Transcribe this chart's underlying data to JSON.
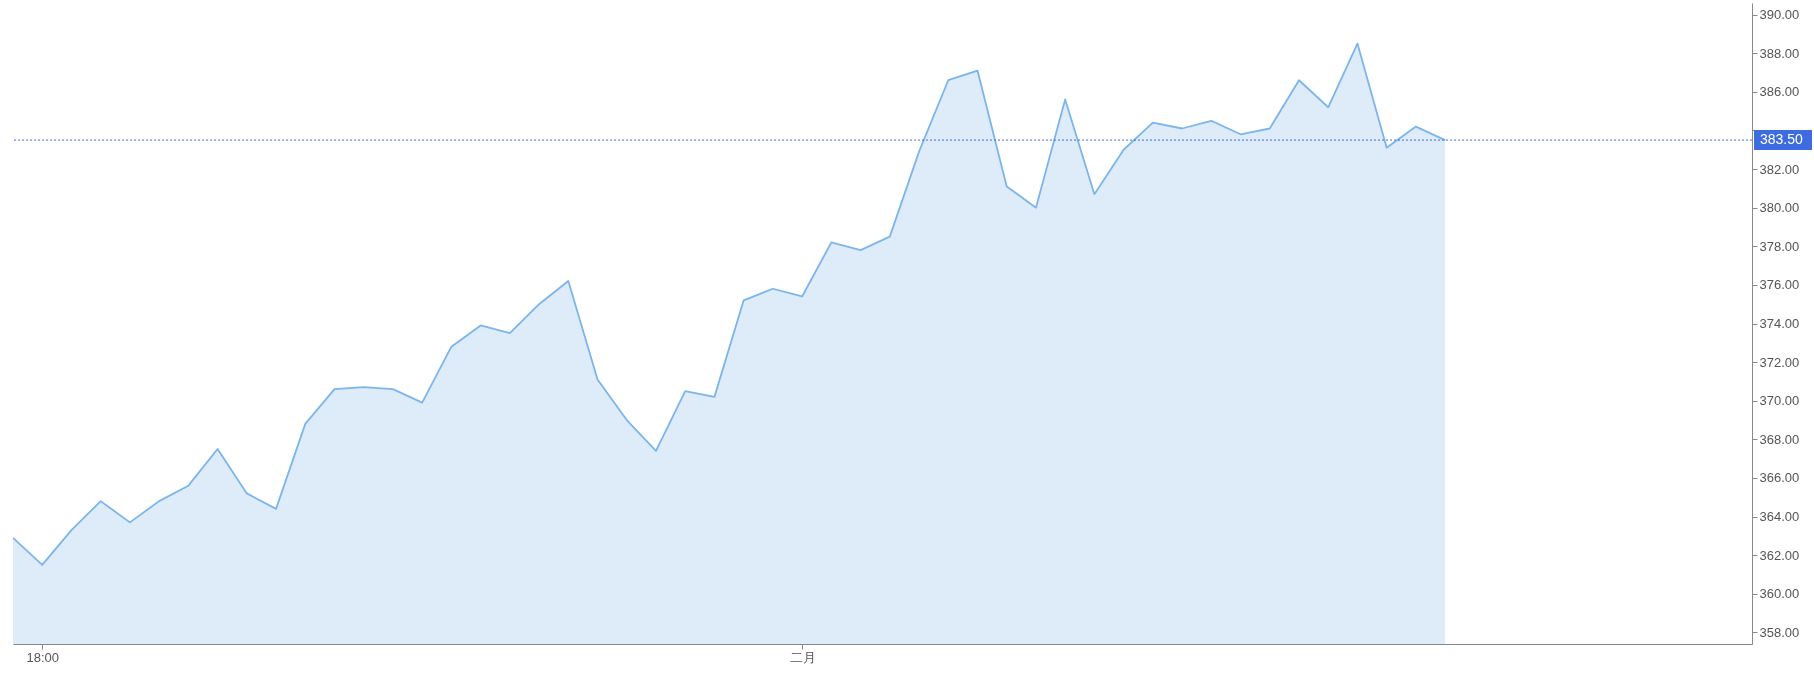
{
  "chart_data": {
    "type": "area",
    "categories": [
      null,
      "18:00",
      null,
      null,
      null,
      null,
      null,
      null,
      null,
      null,
      null,
      null,
      null,
      null,
      null,
      null,
      null,
      null,
      null,
      null,
      null,
      null,
      null,
      null,
      null,
      null,
      null,
      "二月",
      null,
      null,
      null,
      null,
      null,
      null,
      null,
      null,
      null,
      null,
      null,
      null,
      null,
      null,
      null,
      null,
      null,
      null,
      null,
      null,
      null,
      null,
      null,
      null,
      null,
      null,
      null,
      null,
      null,
      null,
      null,
      null
    ],
    "series": [
      {
        "color": "#7cb5ec",
        "values": [
          362.9,
          361.5,
          363.3,
          364.8,
          363.7,
          364.8,
          365.6,
          367.5,
          365.2,
          364.4,
          368.8,
          370.6,
          370.7,
          370.6,
          369.9,
          372.8,
          373.9,
          373.5,
          375.0,
          376.2,
          371.1,
          369.0,
          367.4,
          370.5,
          370.2,
          375.2,
          375.8,
          375.4,
          378.2,
          377.8,
          378.5,
          382.9,
          386.6,
          387.1,
          381.1,
          380.0,
          385.6,
          380.7,
          383.0,
          384.4,
          384.1,
          384.5,
          383.8,
          384.1,
          386.6,
          385.2,
          388.5,
          383.1,
          384.2,
          383.5,
          null,
          null,
          null,
          null,
          null,
          null,
          null,
          null,
          null,
          null
        ]
      }
    ],
    "ylim": [
      357.4,
      390.6
    ],
    "yticks": [
      {
        "value": 358,
        "label": "358.00"
      },
      {
        "value": 360,
        "label": "360.00"
      },
      {
        "value": 362,
        "label": "362.00"
      },
      {
        "value": 364,
        "label": "364.00"
      },
      {
        "value": 366,
        "label": "366.00"
      },
      {
        "value": 368,
        "label": "368.00"
      },
      {
        "value": 370,
        "label": "370.00"
      },
      {
        "value": 372,
        "label": "372.00"
      },
      {
        "value": 374,
        "label": "374.00"
      },
      {
        "value": 376,
        "label": "376.00"
      },
      {
        "value": 378,
        "label": "378.00"
      },
      {
        "value": 380,
        "label": "380.00"
      },
      {
        "value": 382,
        "label": "382.00"
      },
      {
        "value": 384,
        "label": null
      },
      {
        "value": 386,
        "label": "386.00"
      },
      {
        "value": 388,
        "label": "388.00"
      },
      {
        "value": 390,
        "label": "390.00"
      }
    ],
    "ref_lines": [
      {
        "axis": "y",
        "value": 383.5,
        "label": "383.50",
        "color": "#3d6be0",
        "line_style": "dotted"
      }
    ],
    "grid": false
  }
}
